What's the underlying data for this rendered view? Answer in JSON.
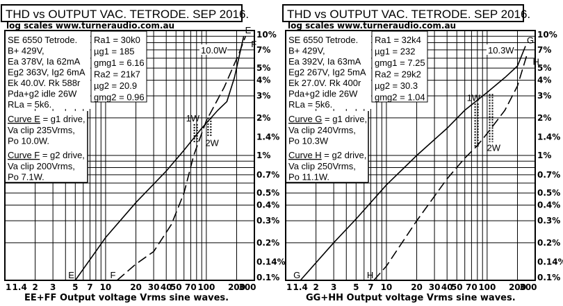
{
  "chart_data": [
    {
      "type": "line",
      "title": "THD vs OUTPUT VAC. TETRODE. SEP 2016.",
      "subtitle": "log scales   www.turneraudio.com.au",
      "xlabel": "EE+FF  Output voltage Vrms sine waves.",
      "xscale": "log",
      "yscale": "log",
      "xlim": [
        1,
        300
      ],
      "ylim": [
        0.1,
        10
      ],
      "x_ticks": [
        "1",
        "1.4",
        "2",
        "3",
        "5",
        "7",
        "10",
        "20",
        "30",
        "40",
        "50",
        "70",
        "100",
        "200",
        "300"
      ],
      "x_tick_values": [
        1,
        1.4,
        2,
        3,
        5,
        7,
        10,
        20,
        30,
        40,
        50,
        70,
        100,
        200,
        300
      ],
      "y_ticks": [
        "10%",
        "7%",
        "5%",
        "4%",
        "3%",
        "2%",
        "1.4%",
        "1%",
        "0.7%",
        "0.5%",
        "0.4%",
        "0.3%",
        "0.2%",
        "0.14%",
        "0.1%"
      ],
      "y_tick_values": [
        10,
        7,
        5,
        4,
        3,
        2,
        1.4,
        1,
        0.7,
        0.5,
        0.4,
        0.3,
        0.2,
        0.14,
        0.1
      ],
      "info_left": [
        "SE 6550 Tetrode.",
        "B+ 429V,",
        "Ea  378V,  Ia 62mA",
        "Eg2 363V, Ig2 6mA",
        "Ek 40.0V. Rk  588r",
        "Pda+g2 idle 26W",
        "RLa = 5k6."
      ],
      "info_right": [
        "Ra1 = 30k0",
        "µg1 = 185",
        "gmg1 = 6.16",
        "Ra2 = 21k7",
        "µg2 = 20.9",
        "gmg2 = 0.96"
      ],
      "curve_notes": [
        {
          "label": "Curve  E",
          "rest": " = g1 drive,",
          "lines": [
            "Va clip  235Vrms,",
            "Po  10.0W."
          ]
        },
        {
          "label": "Curve  F",
          "rest": " = g2 drive,",
          "lines": [
            "Va clip 200Vrms,",
            "Po  7.1W."
          ]
        }
      ],
      "annotations": [
        "1W",
        "2W",
        "10.0W",
        "E",
        "F"
      ],
      "markers": [
        {
          "label": "1W",
          "x": 76,
          "ylo": 1.25,
          "yhi": 1.78
        },
        {
          "label": "2W",
          "x": 104,
          "ylo": 1.4,
          "yhi": 2.0
        }
      ],
      "series": [
        {
          "name": "E",
          "style": "solid",
          "points": [
            [
              5.0,
              0.1
            ],
            [
              10,
              0.22
            ],
            [
              20,
              0.42
            ],
            [
              40,
              0.75
            ],
            [
              60,
              1.1
            ],
            [
              90,
              1.65
            ],
            [
              130,
              2.3
            ],
            [
              160,
              2.7
            ],
            [
              190,
              4.2
            ],
            [
              235,
              9.0
            ]
          ]
        },
        {
          "name": "F",
          "style": "dashed",
          "points": [
            [
              13,
              0.1
            ],
            [
              20,
              0.135
            ],
            [
              30,
              0.17
            ],
            [
              45,
              0.28
            ],
            [
              60,
              0.5
            ],
            [
              75,
              1.0
            ],
            [
              100,
              1.9
            ],
            [
              150,
              3.5
            ],
            [
              210,
              6.5
            ],
            [
              245,
              9.0
            ]
          ]
        }
      ]
    },
    {
      "type": "line",
      "title": "THD vs OUTPUT VAC. TETRODE. SEP 2016.",
      "subtitle": "log scales   www.turneraudio.com.au",
      "xlabel": "GG+HH  Output voltage Vrms sine waves.",
      "xscale": "log",
      "yscale": "log",
      "xlim": [
        1,
        300
      ],
      "ylim": [
        0.1,
        10
      ],
      "x_ticks": [
        "1",
        "1.4",
        "2",
        "3",
        "5",
        "7",
        "10",
        "20",
        "30",
        "40",
        "50",
        "70",
        "100",
        "200",
        "300"
      ],
      "x_tick_values": [
        1,
        1.4,
        2,
        3,
        5,
        7,
        10,
        20,
        30,
        40,
        50,
        70,
        100,
        200,
        300
      ],
      "y_ticks": [
        "10%",
        "7%",
        "5%",
        "4%",
        "3%",
        "2%",
        "1.4%",
        "1%",
        "0.7%",
        "0.5%",
        "0.4%",
        "0.3%",
        "0.2%",
        "0.14%",
        "0.1%"
      ],
      "y_tick_values": [
        10,
        7,
        5,
        4,
        3,
        2,
        1.4,
        1,
        0.7,
        0.5,
        0.4,
        0.3,
        0.2,
        0.14,
        0.1
      ],
      "info_left": [
        "SE 6550 Tetrode.",
        "B+ 429V,",
        "Ea  392V, Ia 63mA",
        "Eg2 267V, Ig2 5mA",
        "Ek 27.0V.  Rk 400r",
        "Pda+g2 idle 26W",
        "RLa = 5k6."
      ],
      "info_right": [
        "Ra1 = 32k4",
        "µg1 = 232",
        "gmg1 = 7.25",
        "Ra2 = 29k2",
        "µg2 = 30.3",
        "gmg2 = 1.04"
      ],
      "curve_notes": [
        {
          "label": "Curve  G",
          "rest": " = g1 drive,",
          "lines": [
            "Va clip  240Vrms,",
            "Po  10.3W"
          ]
        },
        {
          "label": "Curve  H",
          "rest": " = g2 drive,",
          "lines": [
            "Va clip 250Vrms,",
            "Po  11.1W."
          ]
        }
      ],
      "annotations": [
        "1W",
        "2W",
        "10.3W",
        "G",
        "H"
      ],
      "markers": [
        {
          "label": "1W",
          "x": 76,
          "ylo": 1.15,
          "yhi": 2.6
        },
        {
          "label": "2W",
          "x": 106,
          "ylo": 1.28,
          "yhi": 3.1
        }
      ],
      "series": [
        {
          "name": "G",
          "style": "solid",
          "points": [
            [
              1.4,
              0.1
            ],
            [
              3,
              0.2
            ],
            [
              5,
              0.31
            ],
            [
              10,
              0.58
            ],
            [
              20,
              1.0
            ],
            [
              40,
              1.65
            ],
            [
              60,
              2.3
            ],
            [
              100,
              3.2
            ],
            [
              150,
              4.2
            ],
            [
              200,
              5.2
            ],
            [
              240,
              7.5
            ]
          ]
        },
        {
          "name": "H",
          "style": "dashed",
          "points": [
            [
              7.5,
              0.1
            ],
            [
              10,
              0.13
            ],
            [
              20,
              0.3
            ],
            [
              40,
              0.65
            ],
            [
              60,
              0.95
            ],
            [
              80,
              1.2
            ],
            [
              100,
              1.5
            ],
            [
              150,
              2.3
            ],
            [
              200,
              3.6
            ],
            [
              250,
              6.5
            ]
          ]
        }
      ]
    }
  ]
}
